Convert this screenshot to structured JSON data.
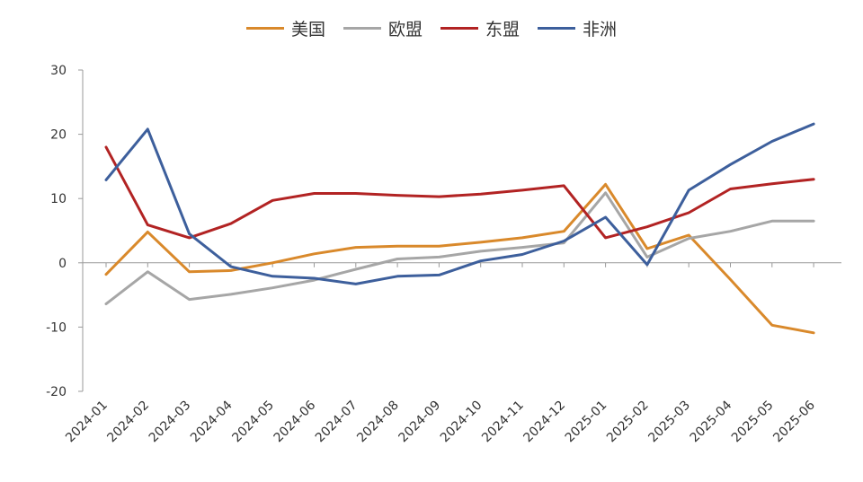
{
  "chart_data": {
    "type": "line",
    "title": "",
    "xlabel": "",
    "ylabel": "",
    "ylim": [
      -20,
      30
    ],
    "yticks": [
      "30",
      "20",
      "10",
      "0",
      "-10",
      "-20"
    ],
    "legend_position": "top-center",
    "grid": false,
    "categories": [
      "2024-01",
      "2024-02",
      "2024-03",
      "2024-04",
      "2024-05",
      "2024-06",
      "2024-07",
      "2024-08",
      "2024-09",
      "2024-10",
      "2024-11",
      "2024-12",
      "2025-01",
      "2025-02",
      "2025-03",
      "2025-04",
      "2025-05",
      "2025-06"
    ],
    "series": [
      {
        "name": "美国",
        "color": "#d9892b",
        "values": [
          -1.8,
          4.8,
          -1.4,
          -1.2,
          0.0,
          1.4,
          2.4,
          2.6,
          2.6,
          3.2,
          3.9,
          4.9,
          12.2,
          2.2,
          4.3,
          -2.6,
          -9.7,
          -10.9
        ]
      },
      {
        "name": "欧盟",
        "color": "#a6a6a6",
        "values": [
          -6.4,
          -1.4,
          -5.7,
          -4.9,
          -3.9,
          -2.7,
          -1.0,
          0.6,
          0.9,
          1.8,
          2.4,
          3.1,
          10.9,
          0.9,
          3.8,
          4.9,
          6.5,
          6.5
        ]
      },
      {
        "name": "东盟",
        "color": "#b22323",
        "values": [
          18.0,
          5.9,
          3.9,
          6.1,
          9.7,
          10.8,
          10.8,
          10.5,
          10.3,
          10.7,
          11.3,
          12.0,
          3.9,
          5.6,
          7.8,
          11.5,
          12.3,
          13.0
        ]
      },
      {
        "name": "非洲",
        "color": "#3d5f9c",
        "values": [
          12.9,
          20.8,
          4.5,
          -0.6,
          -2.1,
          -2.4,
          -3.3,
          -2.1,
          -1.9,
          0.3,
          1.3,
          3.4,
          7.1,
          -0.3,
          11.3,
          15.3,
          18.9,
          21.6
        ]
      }
    ]
  }
}
